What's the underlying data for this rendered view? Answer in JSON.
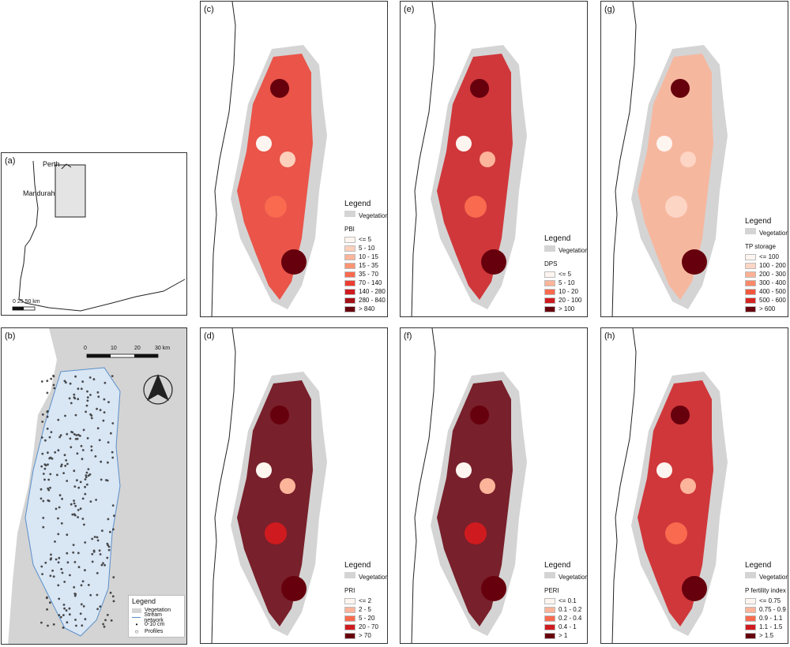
{
  "panels": {
    "a": {
      "label": "(a)",
      "perth": "Perth",
      "mandurah": "Mandurah",
      "scale": "0  25  50 km"
    },
    "b": {
      "label": "(b)",
      "scale_ticks": [
        "0",
        "10",
        "20",
        "30 km"
      ],
      "legend_title": "Legend",
      "items": [
        {
          "label": "Vegetation"
        },
        {
          "label": "Stream network"
        },
        {
          "label": "0-10 cm"
        },
        {
          "label": "Profiles"
        }
      ]
    },
    "c": {
      "label": "(c)",
      "legend": "Legend",
      "vegetation": "Vegetation",
      "variable": "PBI",
      "classes": [
        "<= 5",
        "5 - 10",
        "10 - 15",
        "15 - 35",
        "35 - 70",
        "70 - 140",
        "140 - 280",
        "280 - 840",
        "> 840"
      ]
    },
    "d": {
      "label": "(d)",
      "legend": "Legend",
      "vegetation": "Vegetation",
      "variable": "PRI",
      "classes": [
        "<= 2",
        "2 - 5",
        "5 - 20",
        "20 - 70",
        "> 70"
      ]
    },
    "e": {
      "label": "(e)",
      "legend": "Legend",
      "vegetation": "Vegetation",
      "variable": "DPS",
      "classes": [
        "<= 5",
        "5 - 10",
        "10 - 20",
        "20 - 100",
        "> 100"
      ]
    },
    "f": {
      "label": "(f)",
      "legend": "Legend",
      "vegetation": "Vegetation",
      "variable": "PERI",
      "classes": [
        "<= 0.1",
        "0.1 - 0.2",
        "0.2 - 0.4",
        "0.4 - 1",
        "> 1"
      ]
    },
    "g": {
      "label": "(g)",
      "legend": "Legend",
      "vegetation": "Vegetation",
      "variable": "TP storage",
      "classes": [
        "<= 100",
        "100 - 200",
        "200 - 300",
        "300 - 400",
        "400 - 500",
        "500 - 600",
        "> 600"
      ]
    },
    "h": {
      "label": "(h)",
      "legend": "Legend",
      "vegetation": "Vegetation",
      "variable": "P fertility index",
      "classes": [
        "<= 0.75",
        "0.75 - 0.9",
        "0.9 - 1.1",
        "1.1 - 1.5",
        "> 1.5"
      ]
    }
  },
  "colors": {
    "vegetation": "#d4d4d4",
    "ramp9": [
      "#fff5f0",
      "#fdd0bc",
      "#fcb49a",
      "#fc9474",
      "#f96a4f",
      "#ed3d30",
      "#cf1b1f",
      "#a50f15",
      "#67000d"
    ],
    "ramp7": [
      "#fff5f0",
      "#fdd5c4",
      "#fcb195",
      "#fb8969",
      "#f1593f",
      "#d52621",
      "#67000d"
    ],
    "ramp5": [
      "#fff5f0",
      "#fcb49a",
      "#f96a4f",
      "#cf1b1f",
      "#67000d"
    ],
    "stream": "#5b8fc9"
  }
}
